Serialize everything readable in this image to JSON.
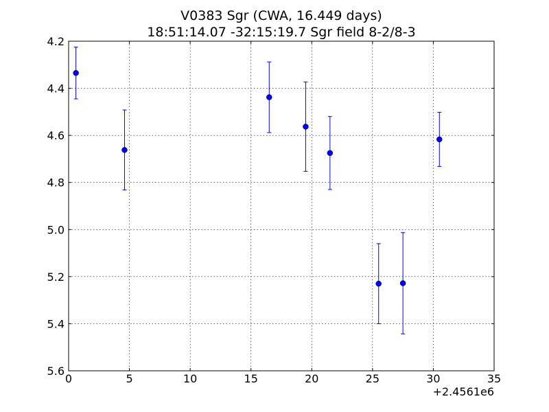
{
  "chart_data": {
    "type": "scatter",
    "title": "V0383 Sgr  (CWA, 16.449 days)",
    "subtitle": "18:51:14.07 -32:15:19.7 Sgr field 8-2/8-3",
    "xlabel": "",
    "ylabel": "",
    "x_offset_label": "+2.4561e6",
    "xlim": [
      0,
      35
    ],
    "ylim": [
      5.6,
      4.2
    ],
    "y_inverted": true,
    "grid": true,
    "x_ticks": [
      0,
      5,
      10,
      15,
      20,
      25,
      30,
      35
    ],
    "x_tick_labels": [
      "0",
      "5",
      "10",
      "15",
      "20",
      "25",
      "30",
      "35"
    ],
    "y_ticks": [
      4.2,
      4.4,
      4.6,
      4.8,
      5.0,
      5.2,
      5.4,
      5.6
    ],
    "y_tick_labels": [
      "4.2",
      "4.4",
      "4.6",
      "4.8",
      "5.0",
      "5.2",
      "5.4",
      "5.6"
    ],
    "marker_color": "#0000ff",
    "series": [
      {
        "points": [
          {
            "x": 0.6,
            "y": 4.335,
            "err": 0.11
          },
          {
            "x": 4.6,
            "y": 4.662,
            "err": 0.17
          },
          {
            "x": 16.5,
            "y": 4.438,
            "err": 0.15
          },
          {
            "x": 19.5,
            "y": 4.563,
            "err": 0.19
          },
          {
            "x": 21.5,
            "y": 4.675,
            "err": 0.155
          },
          {
            "x": 25.5,
            "y": 5.23,
            "err": 0.17
          },
          {
            "x": 27.5,
            "y": 5.228,
            "err": 0.215
          },
          {
            "x": 30.5,
            "y": 4.617,
            "err": 0.115
          }
        ]
      }
    ]
  }
}
